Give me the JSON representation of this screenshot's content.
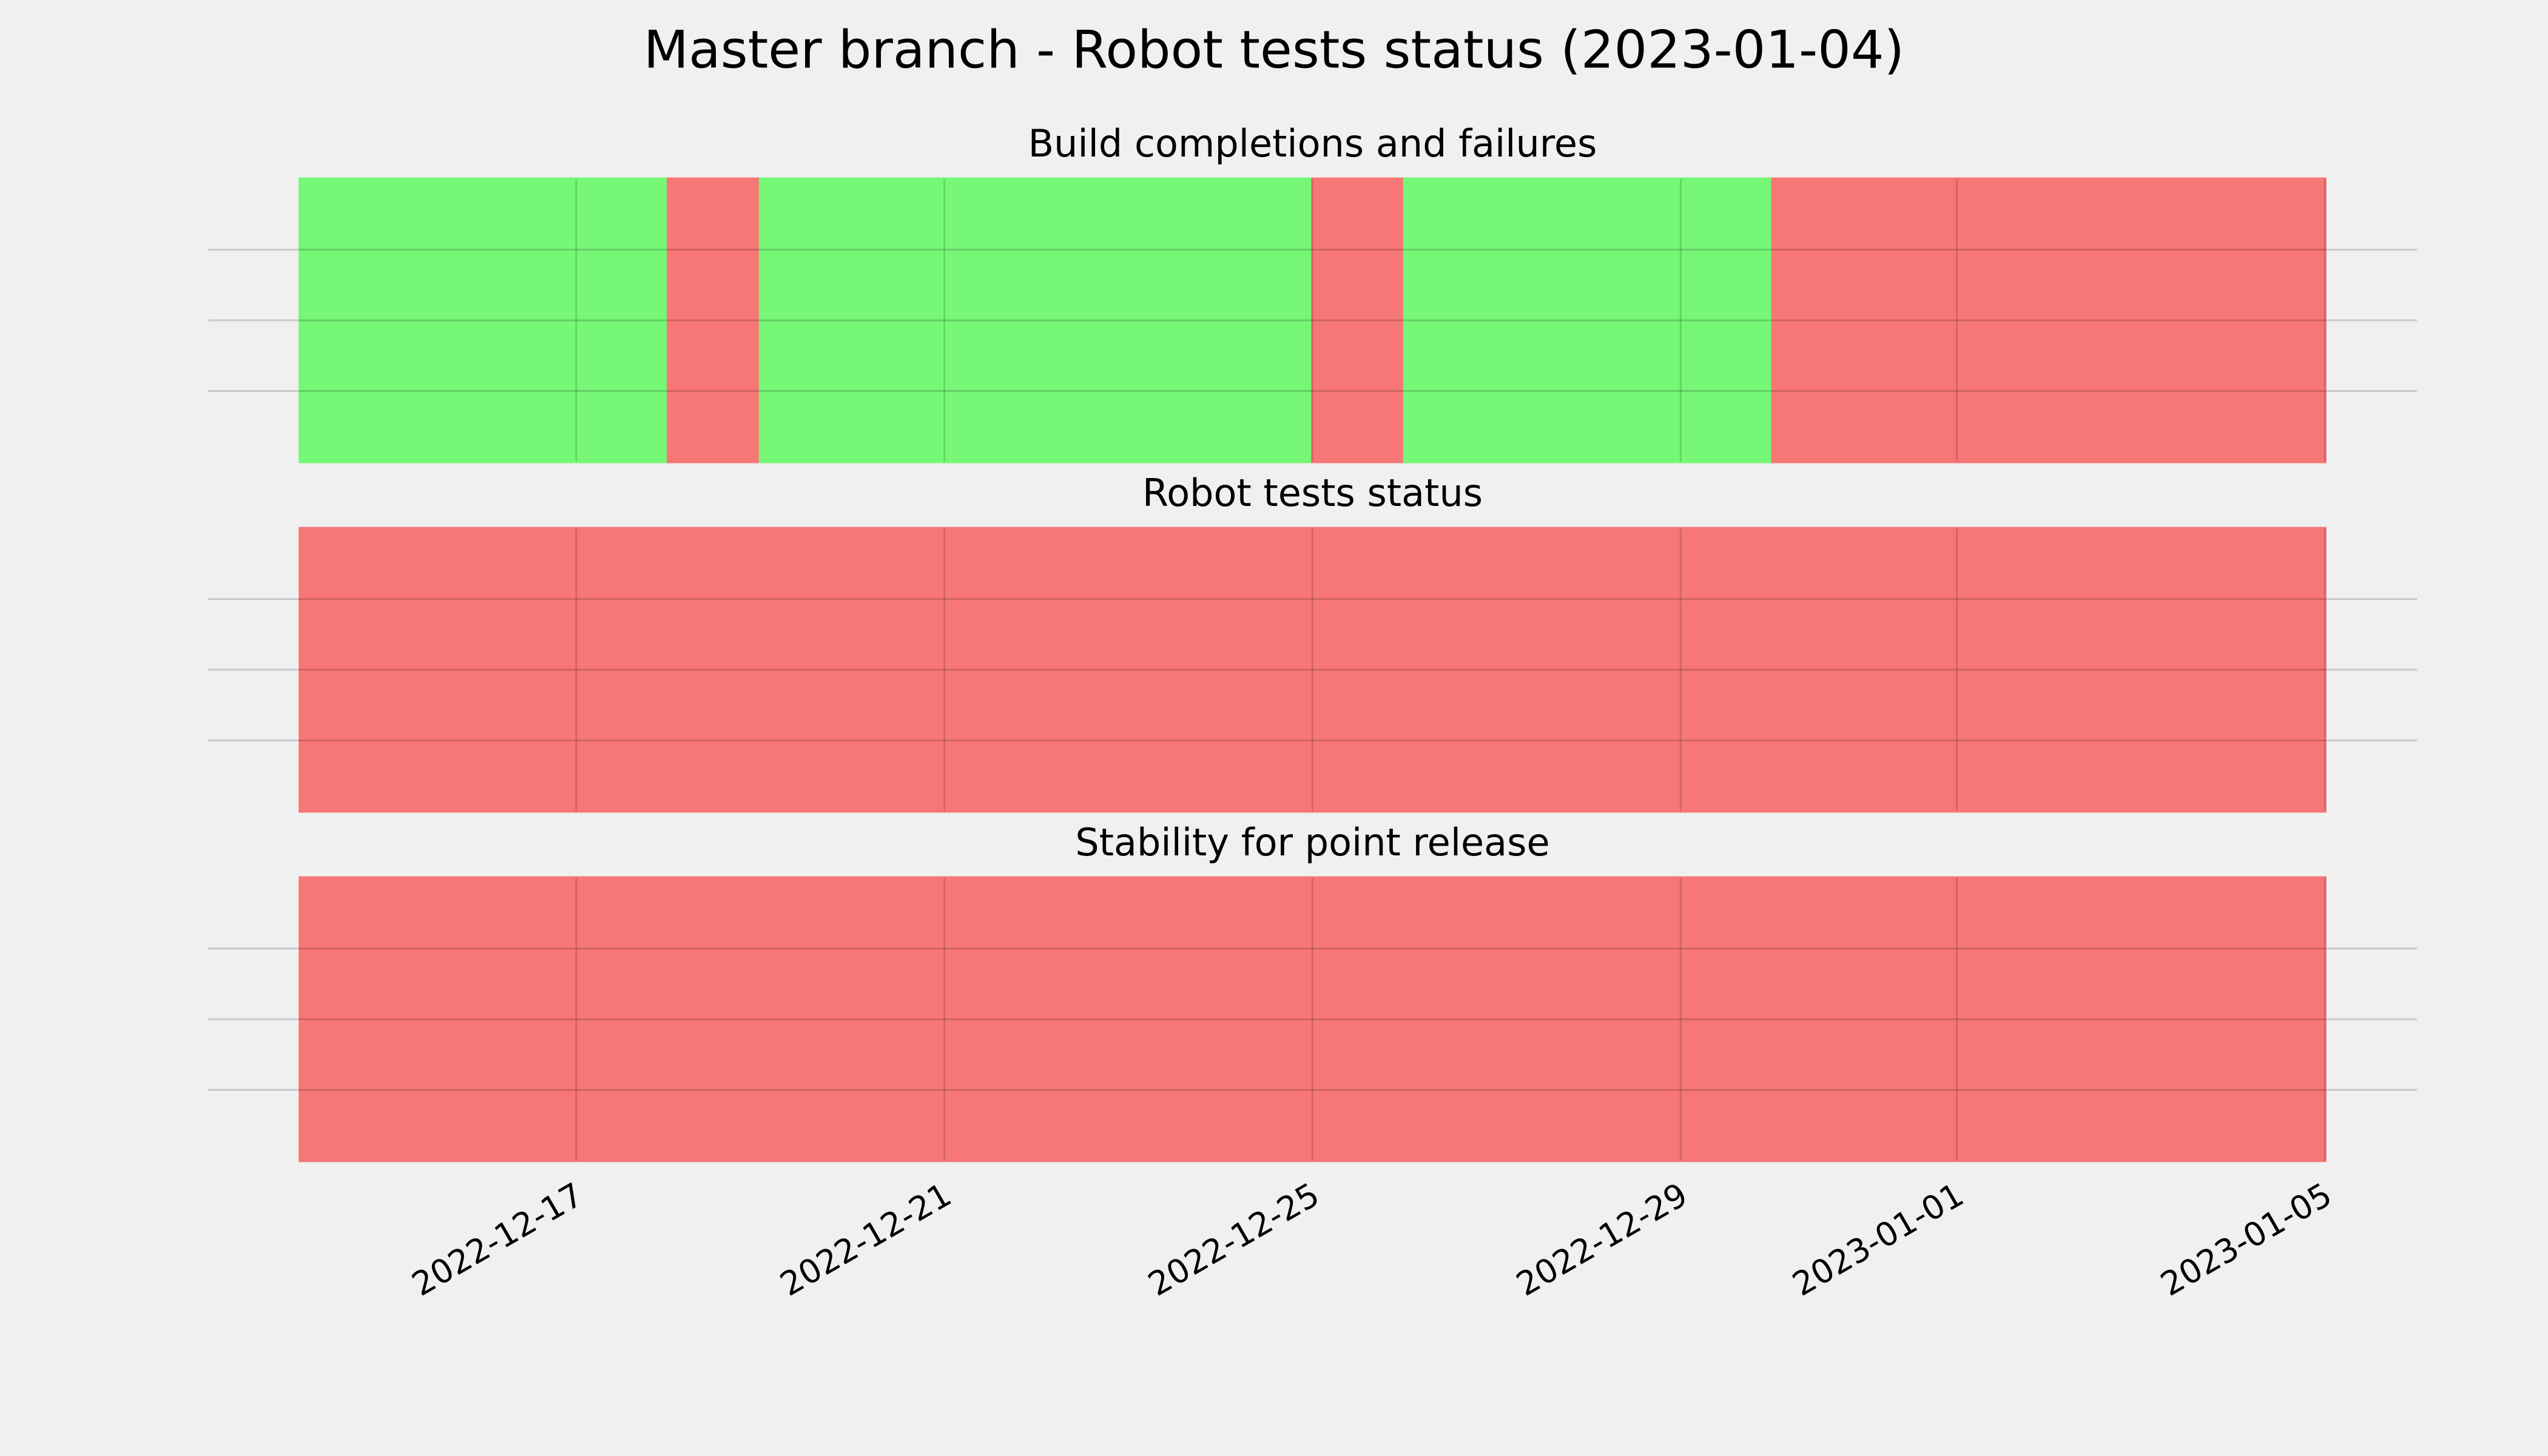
{
  "title": "Master branch - Robot tests status (2023-01-04)",
  "chart_data": [
    {
      "type": "timeline",
      "title": "Build completions and failures",
      "segments": [
        {
          "start": "2022-12-14",
          "end": "2022-12-18",
          "color": "#76f776"
        },
        {
          "start": "2022-12-15",
          "end": "2022-12-15",
          "color": "#f77676"
        },
        {
          "start": "2022-12-18",
          "end": "2022-12-19",
          "color": "#f77676"
        },
        {
          "start": "2022-12-19",
          "end": "2022-12-25",
          "color": "#76f776"
        },
        {
          "start": "2022-12-25",
          "end": "2022-12-26",
          "color": "#f77676"
        },
        {
          "start": "2022-12-26",
          "end": "2022-12-30",
          "color": "#76f776"
        },
        {
          "start": "2022-12-30",
          "end": "2023-01-05",
          "color": "#f77676"
        }
      ],
      "xlim": [
        "2022-12-13",
        "2023-01-06"
      ],
      "xticks": [
        "2022-12-17",
        "2022-12-21",
        "2022-12-25",
        "2022-12-29",
        "2023-01-01",
        "2023-01-05"
      ],
      "grid": true
    },
    {
      "type": "timeline",
      "title": "Robot tests status",
      "segments": [
        {
          "start": "2022-12-14",
          "end": "2023-01-05",
          "color": "#f77676"
        }
      ],
      "xlim": [
        "2022-12-13",
        "2023-01-06"
      ],
      "xticks": [
        "2022-12-17",
        "2022-12-21",
        "2022-12-25",
        "2022-12-29",
        "2023-01-01",
        "2023-01-05"
      ],
      "grid": true
    },
    {
      "type": "timeline",
      "title": "Stability for point release",
      "segments": [
        {
          "start": "2022-12-14",
          "end": "2023-01-05",
          "color": "#f77676"
        }
      ],
      "xlim": [
        "2022-12-13",
        "2023-01-06"
      ],
      "xticks": [
        "2022-12-17",
        "2022-12-21",
        "2022-12-25",
        "2022-12-29",
        "2023-01-01",
        "2023-01-05"
      ],
      "grid": true,
      "show_xtick_labels": true
    }
  ]
}
